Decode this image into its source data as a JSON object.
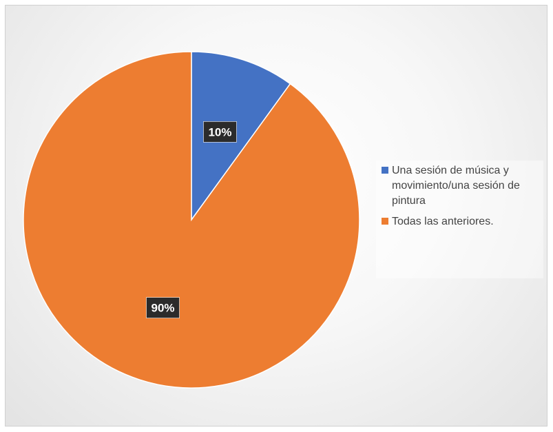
{
  "chart_data": {
    "type": "pie",
    "categories": [
      "Una sesión de música y movimiento/una sesión de pintura",
      "Todas las anteriores."
    ],
    "values": [
      10,
      90
    ],
    "data_labels": [
      "10%",
      "90%"
    ],
    "colors": [
      "#4472C4",
      "#ED7D31"
    ],
    "legend_position": "right",
    "start_angle": "12 o'clock, clockwise"
  }
}
